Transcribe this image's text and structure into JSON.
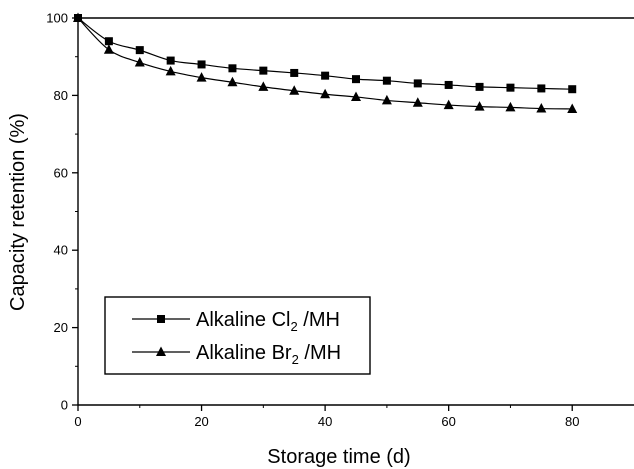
{
  "chart_data": {
    "type": "line",
    "xlabel": "Storage time (d)",
    "ylabel": "Capacity retention (%)",
    "xlim": [
      0,
      90
    ],
    "ylim": [
      0,
      100
    ],
    "xticks": [
      "0",
      "20",
      "40",
      "60",
      "80"
    ],
    "yticks": [
      "0",
      "20",
      "40",
      "60",
      "80",
      "100"
    ],
    "grid": false,
    "legend_position": "lower-left",
    "x": [
      0,
      5,
      10,
      15,
      20,
      25,
      30,
      35,
      40,
      45,
      50,
      55,
      60,
      65,
      70,
      75,
      80
    ],
    "series": [
      {
        "name_main": "Alkaline Cl",
        "name_sub": "2",
        "name_tail": " /MH",
        "marker": "square",
        "values": [
          100,
          94.0,
          91.7,
          89.0,
          88.0,
          87.0,
          86.4,
          85.8,
          85.1,
          84.2,
          83.8,
          83.1,
          82.7,
          82.2,
          82.0,
          81.8,
          81.6
        ]
      },
      {
        "name_main": "Alkaline Br",
        "name_sub": "2",
        "name_tail": " /MH",
        "marker": "triangle",
        "values": [
          100,
          91.8,
          88.5,
          86.2,
          84.6,
          83.4,
          82.2,
          81.2,
          80.3,
          79.6,
          78.7,
          78.1,
          77.5,
          77.1,
          76.9,
          76.6,
          76.5
        ]
      }
    ],
    "reference_line": {
      "y": 100
    },
    "colors": {
      "line": "#000000",
      "marker": "#000000",
      "background": "#ffffff"
    }
  }
}
